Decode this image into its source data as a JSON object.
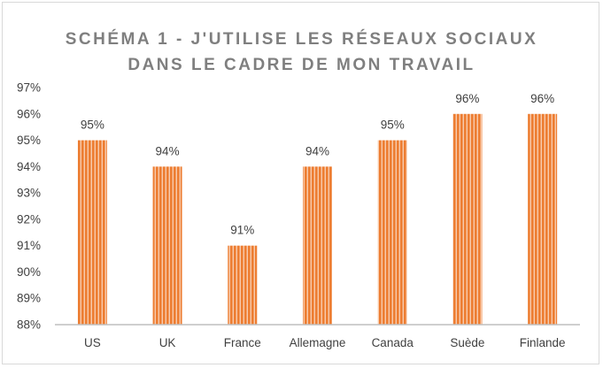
{
  "chart_data": {
    "type": "bar",
    "title_line1": "SCHÉMA 1 - J'UTILISE LES RÉSEAUX SOCIAUX",
    "title_line2": "DANS LE CADRE DE MON TRAVAIL",
    "categories": [
      "US",
      "UK",
      "France",
      "Allemagne",
      "Canada",
      "Suède",
      "Finlande"
    ],
    "values": [
      95,
      94,
      91,
      94,
      95,
      96,
      96
    ],
    "value_labels": [
      "95%",
      "94%",
      "91%",
      "94%",
      "95%",
      "96%",
      "96%"
    ],
    "ylim": [
      88,
      97
    ],
    "yticks": [
      88,
      89,
      90,
      91,
      92,
      93,
      94,
      95,
      96,
      97
    ],
    "ytick_labels": [
      "88%",
      "89%",
      "90%",
      "91%",
      "92%",
      "93%",
      "94%",
      "95%",
      "96%",
      "97%"
    ],
    "xlabel": "",
    "ylabel": "",
    "grid": false,
    "legend": "none",
    "bar_color": "#ed7d31",
    "bar_stripe_color": "#f8cbad"
  }
}
